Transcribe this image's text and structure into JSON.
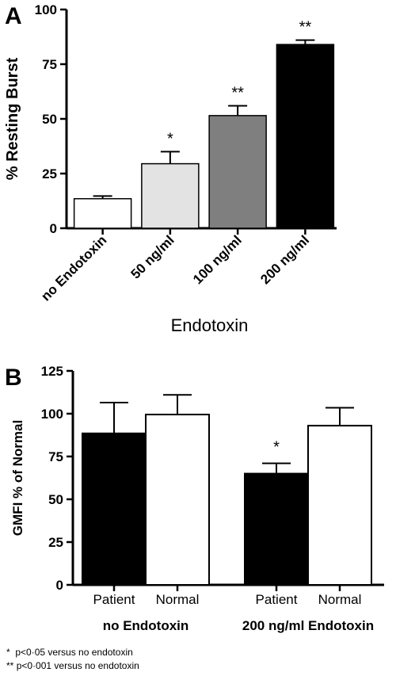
{
  "chart_data": [
    {
      "type": "bar",
      "panel_label": "A",
      "categories": [
        "no Endotoxin",
        "50 ng/ml",
        "100 ng/ml",
        "200 ng/ml"
      ],
      "values": [
        13.5,
        29.5,
        51.5,
        84
      ],
      "errors": [
        1.2,
        5.5,
        4.5,
        2.0
      ],
      "significance": [
        "",
        "*",
        "**",
        "**"
      ],
      "bar_colors": [
        "#ffffff",
        "#e3e3e3",
        "#7f7f7f",
        "#000000"
      ],
      "title": "",
      "xlabel": "Endotoxin",
      "ylabel": "% Resting Burst",
      "ylim": [
        0,
        100
      ],
      "yticks": [
        0,
        25,
        50,
        75,
        100
      ],
      "grid": false
    },
    {
      "type": "bar",
      "panel_label": "B",
      "groups": [
        {
          "label": "no Endotoxin",
          "bars": [
            {
              "label": "Patient",
              "value": 88.5,
              "error": 18,
              "significance": "",
              "color": "#000000"
            },
            {
              "label": "Normal",
              "value": 99.5,
              "error": 11.5,
              "significance": "",
              "color": "#ffffff"
            }
          ]
        },
        {
          "label": "200 ng/ml Endotoxin",
          "bars": [
            {
              "label": "Patient",
              "value": 65,
              "error": 6,
              "significance": "*",
              "color": "#000000"
            },
            {
              "label": "Normal",
              "value": 93,
              "error": 10.5,
              "significance": "",
              "color": "#ffffff"
            }
          ]
        }
      ],
      "title": "",
      "xlabel": "",
      "ylabel": "GMFI % of Normal",
      "ylim": [
        0,
        125
      ],
      "yticks": [
        0,
        25,
        50,
        75,
        100,
        125
      ],
      "grid": false
    }
  ],
  "footnotes": [
    {
      "marker": "*",
      "text": "p<0·05 versus no endotoxin"
    },
    {
      "marker": "**",
      "text": "p<0·001 versus no endotoxin"
    }
  ]
}
